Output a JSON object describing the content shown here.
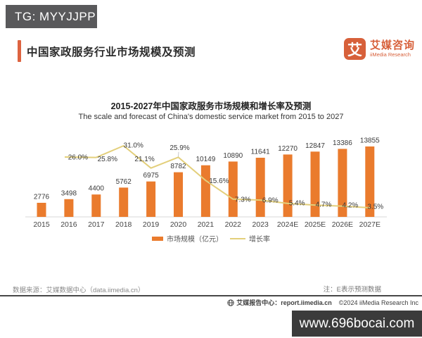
{
  "watermark_badge": {
    "text": "TG: MYYJJPP"
  },
  "header": {
    "title": "中国家政服务行业市场规模及预测",
    "logo": {
      "glyph": "艾",
      "brand_cn": "艾媒咨询",
      "brand_en": "iiMedia Research"
    }
  },
  "theme": {
    "bar_orange": "#ea7b2d",
    "line_yellow": "#e3cf7b",
    "logo_orange": "#d7603a"
  },
  "chart_data": {
    "type": "bar",
    "title": "2015-2027年中国家政服务市场规模和增长率及预测",
    "subtitle": "The scale and forecast of China's domestic service market from 2015 to 2027",
    "categories": [
      "2015",
      "2016",
      "2017",
      "2018",
      "2019",
      "2020",
      "2021",
      "2022",
      "2023",
      "2024E",
      "2025E",
      "2026E",
      "2027E"
    ],
    "series": [
      {
        "name": "市场规模（亿元）",
        "type": "bar",
        "color": "#ea7b2d",
        "values": [
          2776,
          3498,
          4400,
          5762,
          6975,
          8782,
          10149,
          10890,
          11641,
          12270,
          12847,
          13386,
          13855
        ]
      },
      {
        "name": "增长率",
        "type": "line",
        "color": "#e3cf7b",
        "values": [
          null,
          26.0,
          25.8,
          31.0,
          21.1,
          25.9,
          15.6,
          7.3,
          6.9,
          5.4,
          4.7,
          4.2,
          3.5
        ],
        "labels": [
          "",
          "26.0%",
          "25.8%",
          "31.0%",
          "21.1%",
          "25.9%",
          "15.6%",
          "7.3%",
          "6.9%",
          "5.4%",
          "4.7%",
          "4.2%",
          "3.5%"
        ]
      }
    ],
    "bar_axis_max": 13855,
    "grid": false,
    "legend_position": "bottom-center"
  },
  "footer": {
    "source": "数据来源：艾媒数据中心（data.iimedia.cn）",
    "note": "注：E表示预测数据",
    "report_center": "艾媒报告中心：report.iimedia.cn",
    "copyright": "©2024  iiMedia Research  Inc"
  },
  "bottom_watermark": {
    "text": "www.696bocai.com"
  }
}
